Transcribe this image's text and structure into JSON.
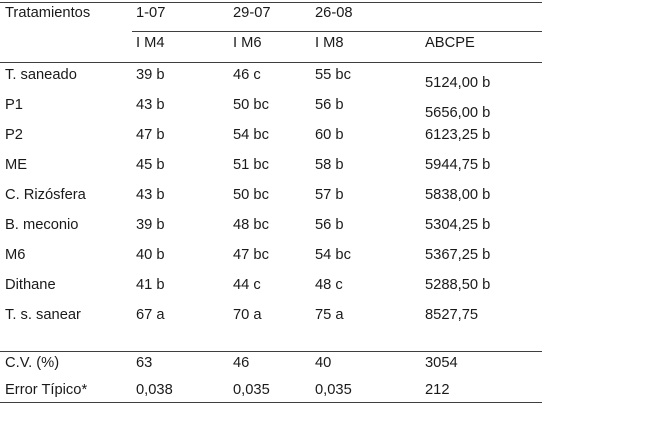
{
  "style": {
    "background_color": "#ffffff",
    "text_color": "#1a1a1a",
    "rule_color": "#3f3f3f"
  },
  "table": {
    "header": {
      "treatments_label": "Tratamientos",
      "dates": [
        "1-07",
        "29-07",
        "26-08"
      ],
      "subheaders": [
        "I M4",
        "I M6",
        "I M8",
        "ABCPE"
      ]
    },
    "rows": [
      {
        "label": "T. saneado",
        "im4": "39 b",
        "im6": "46 c",
        "im8": "55 bc",
        "abcpe": "5124,00 b"
      },
      {
        "label": "P1",
        "im4": "43 b",
        "im6": "50 bc",
        "im8": "56 b",
        "abcpe": "5656,00 b"
      },
      {
        "label": "P2",
        "im4": "47 b",
        "im6": "54 bc",
        "im8": "60 b",
        "abcpe": "6123,25 b"
      },
      {
        "label": "ME",
        "im4": "45 b",
        "im6": "51 bc",
        "im8": "58 b",
        "abcpe": "5944,75 b"
      },
      {
        "label": "C. Rizósfera",
        "im4": "43 b",
        "im6": "50 bc",
        "im8": "57 b",
        "abcpe": "5838,00 b"
      },
      {
        "label": "B. meconio",
        "im4": "39 b",
        "im6": "48 bc",
        "im8": "56 b",
        "abcpe": "5304,25 b"
      },
      {
        "label": "M6",
        "im4": "40 b",
        "im6": "47 bc",
        "im8": "54 bc",
        "abcpe": "5367,25 b"
      },
      {
        "label": "Dithane",
        "im4": "41 b",
        "im6": "44 c",
        "im8": "48 c",
        "abcpe": "5288,50 b"
      },
      {
        "label": "T. s. sanear",
        "im4": "67 a",
        "im6": "70 a",
        "im8": "75 a",
        "abcpe": "8527,75"
      }
    ],
    "stats": [
      {
        "label": "C.V. (%)",
        "im4": "63",
        "im6": "46",
        "im8": "40",
        "abcpe": "3054"
      },
      {
        "label": "Error Típico*",
        "im4": "0,038",
        "im6": "0,035",
        "im8": "0,035",
        "abcpe": "212"
      }
    ]
  }
}
